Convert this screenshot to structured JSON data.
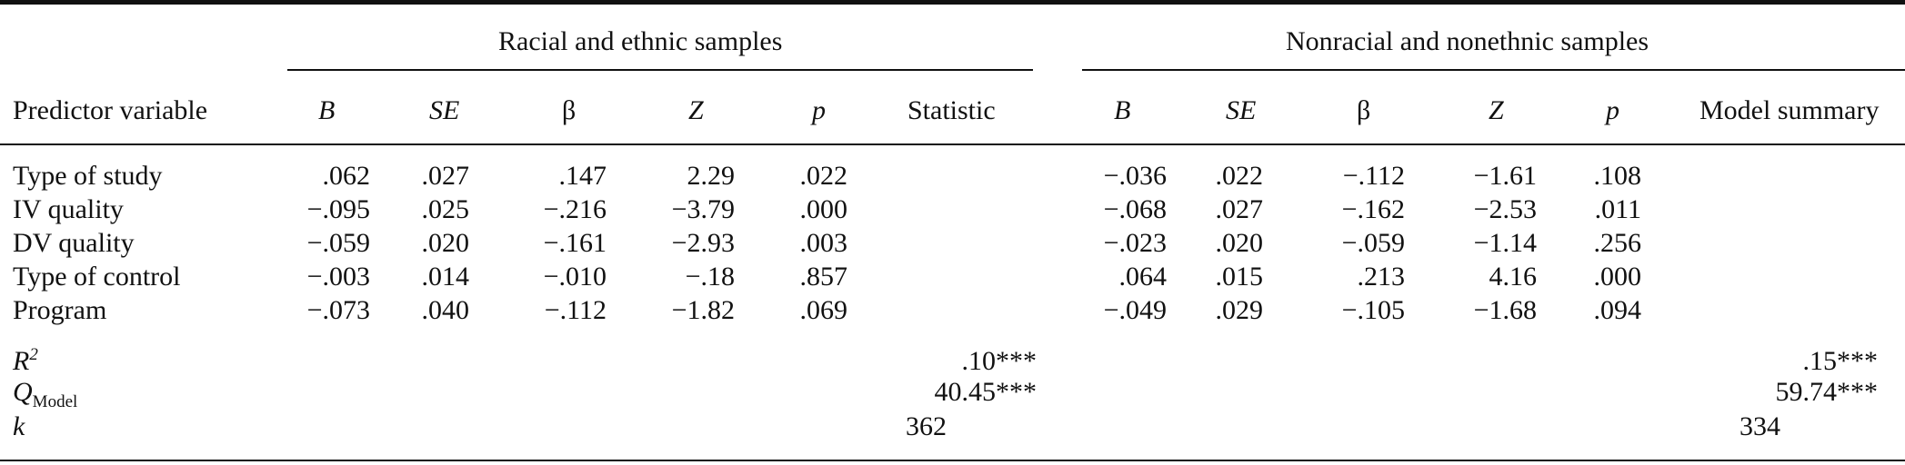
{
  "groups": {
    "left": "Racial and ethnic samples",
    "right": "Nonracial and nonethnic samples"
  },
  "headers": {
    "predictor": "Predictor variable",
    "B": "B",
    "SE": "SE",
    "beta": "β",
    "Z": "Z",
    "p": "p",
    "statistic": "Statistic",
    "model_summary": "Model summary"
  },
  "rows": [
    {
      "label": "Type of study",
      "left": {
        "B": ".062",
        "SE": ".027",
        "beta": ".147",
        "Z": "2.29",
        "p": ".022"
      },
      "right": {
        "B": "−.036",
        "SE": ".022",
        "beta": "−.112",
        "Z": "−1.61",
        "p": ".108"
      }
    },
    {
      "label": "IV quality",
      "left": {
        "B": "−.095",
        "SE": ".025",
        "beta": "−.216",
        "Z": "−3.79",
        "p": ".000"
      },
      "right": {
        "B": "−.068",
        "SE": ".027",
        "beta": "−.162",
        "Z": "−2.53",
        "p": ".011"
      }
    },
    {
      "label": "DV quality",
      "left": {
        "B": "−.059",
        "SE": ".020",
        "beta": "−.161",
        "Z": "−2.93",
        "p": ".003"
      },
      "right": {
        "B": "−.023",
        "SE": ".020",
        "beta": "−.059",
        "Z": "−1.14",
        "p": ".256"
      }
    },
    {
      "label": "Type of control",
      "left": {
        "B": "−.003",
        "SE": ".014",
        "beta": "−.010",
        "Z": "−.18",
        "p": ".857"
      },
      "right": {
        "B": ".064",
        "SE": ".015",
        "beta": ".213",
        "Z": "4.16",
        "p": ".000"
      }
    },
    {
      "label": "Program",
      "left": {
        "B": "−.073",
        "SE": ".040",
        "beta": "−.112",
        "Z": "−1.82",
        "p": ".069"
      },
      "right": {
        "B": "−.049",
        "SE": ".029",
        "beta": "−.105",
        "Z": "−1.68",
        "p": ".094"
      }
    }
  ],
  "summary": {
    "r2_label": "R",
    "r2_sup": "2",
    "q_label": "Q",
    "q_sub": "Model",
    "k_label": "k",
    "left": {
      "r2": ".10***",
      "q": "40.45***",
      "k": "362"
    },
    "right": {
      "r2": ".15***",
      "q": "59.74***",
      "k": "334"
    }
  }
}
